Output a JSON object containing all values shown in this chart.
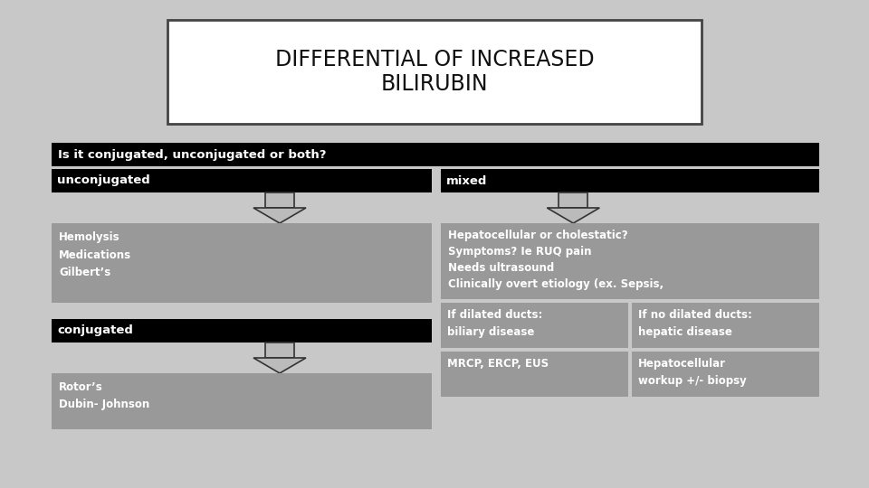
{
  "background_color": "#c8c8c8",
  "title": "DIFFERENTIAL OF INCREASED\nBILIRUBIN",
  "title_box_color": "#ffffff",
  "title_border_color": "#444444",
  "question_text": "Is it conjugated, unconjugated or both?",
  "question_bg": "#000000",
  "question_text_color": "#ffffff",
  "left_header": "unconjugated",
  "left_header_bg": "#000000",
  "left_header_text_color": "#ffffff",
  "left_content": "Hemolysis\nMedications\nGilbert’s",
  "left_content_bg": "#999999",
  "left2_header": "conjugated",
  "left2_header_bg": "#000000",
  "left2_header_text_color": "#ffffff",
  "left2_content": "Rotor’s\nDubin- Johnson",
  "left2_content_bg": "#999999",
  "right_header": "mixed",
  "right_header_bg": "#000000",
  "right_header_text_color": "#ffffff",
  "right_top_content": "Hepatocellular or cholestatic?\nSymptoms? Ie RUQ pain\nNeeds ultrasound\nClinically overt etiology (ex. Sepsis,",
  "right_top_bg": "#999999",
  "right_bl_content": "If dilated ducts:\nbiliary disease",
  "right_bl_bg": "#999999",
  "right_br_content": "If no dilated ducts:\nhepatic disease",
  "right_br_bg": "#999999",
  "right_ll_content": "MRCP, ERCP, EUS",
  "right_ll_bg": "#999999",
  "right_lr_content": "Hepatocellular\nworkup +/- biopsy",
  "right_lr_bg": "#999999",
  "arrow_color": "#bbbbbb",
  "arrow_edge_color": "#333333",
  "content_text_color": "#ffffff",
  "content_font_size": 8.5,
  "header_font_size": 9.5,
  "title_font_size": 17
}
